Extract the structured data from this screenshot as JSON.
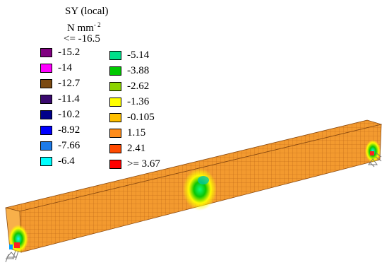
{
  "legend": {
    "title": "SY (local)",
    "unit_base": "N mm",
    "unit_exp": "- 2",
    "min_label": "<= -16.5",
    "left_items": [
      {
        "label": "-15.2",
        "color": "#800080"
      },
      {
        "label": "-14",
        "color": "#ff00ff"
      },
      {
        "label": "-12.7",
        "color": "#7b4a12"
      },
      {
        "label": "-11.4",
        "color": "#3a0a6e"
      },
      {
        "label": "-10.2",
        "color": "#00008b"
      },
      {
        "label": "-8.92",
        "color": "#0000ff"
      },
      {
        "label": "-7.66",
        "color": "#1e7be8"
      },
      {
        "label": "-6.4",
        "color": "#00ffff"
      }
    ],
    "right_items": [
      {
        "label": "-5.14",
        "color": "#00e08a"
      },
      {
        "label": "-3.88",
        "color": "#00c800"
      },
      {
        "label": "-2.62",
        "color": "#8cd400"
      },
      {
        "label": "-1.36",
        "color": "#ffff00"
      },
      {
        "label": "-0.105",
        "color": "#ffc000"
      },
      {
        "label": "1.15",
        "color": "#ff8c1a"
      },
      {
        "label": "2.41",
        "color": "#ff4a00"
      },
      {
        "label": ">= 3.67",
        "color": "#ff0000"
      }
    ]
  },
  "model": {
    "beam_color": "#f39a2f",
    "mesh_color": "#b05a10",
    "hotspot_colors": [
      "#00ff7f",
      "#00c800",
      "#ffff00",
      "#00ffff"
    ]
  }
}
